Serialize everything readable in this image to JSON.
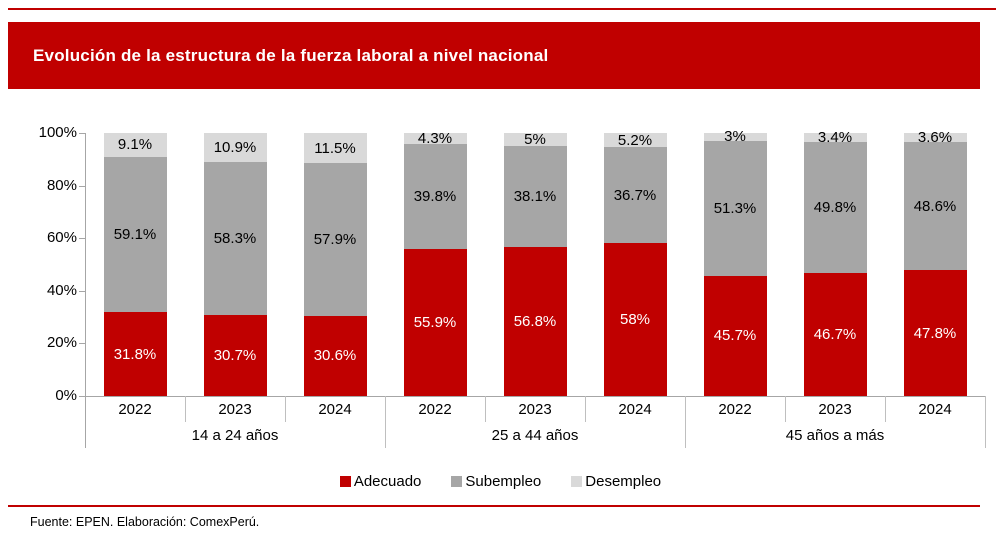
{
  "header": {
    "title": "Evolución de la estructura de la fuerza laboral a nivel nacional",
    "banner_color": "#c00000",
    "title_color": "#ffffff"
  },
  "footer": {
    "source": "Fuente: EPEN. Elaboración: ComexPerú."
  },
  "chart_data": {
    "type": "bar",
    "variant": "stacked-100-percent",
    "title": "Evolución de la estructura de la fuerza laboral a nivel nacional",
    "xlabel": "",
    "ylabel": "",
    "ylim": [
      0,
      100
    ],
    "y_ticks": [
      "0%",
      "20%",
      "40%",
      "60%",
      "80%",
      "100%"
    ],
    "grid": false,
    "legend_position": "bottom",
    "groups": [
      "14 a 24 años",
      "25 a 44 años",
      "45 años a más"
    ],
    "categories": [
      "2022",
      "2023",
      "2024",
      "2022",
      "2023",
      "2024",
      "2022",
      "2023",
      "2024"
    ],
    "series": [
      {
        "name": "Adecuado",
        "color": "#c00000",
        "label_color": "#ffffff",
        "values": [
          31.8,
          30.7,
          30.6,
          55.9,
          56.8,
          58,
          45.7,
          46.7,
          47.8
        ]
      },
      {
        "name": "Subempleo",
        "color": "#a6a6a6",
        "label_color": "#000000",
        "values": [
          59.1,
          58.3,
          57.9,
          39.8,
          38.1,
          36.7,
          51.3,
          49.8,
          48.6
        ]
      },
      {
        "name": "Desempleo",
        "color": "#d9d9d9",
        "label_color": "#000000",
        "values": [
          9.1,
          10.9,
          11.5,
          4.3,
          5,
          5.2,
          3,
          3.4,
          3.6
        ]
      }
    ],
    "value_suffix": "%"
  }
}
